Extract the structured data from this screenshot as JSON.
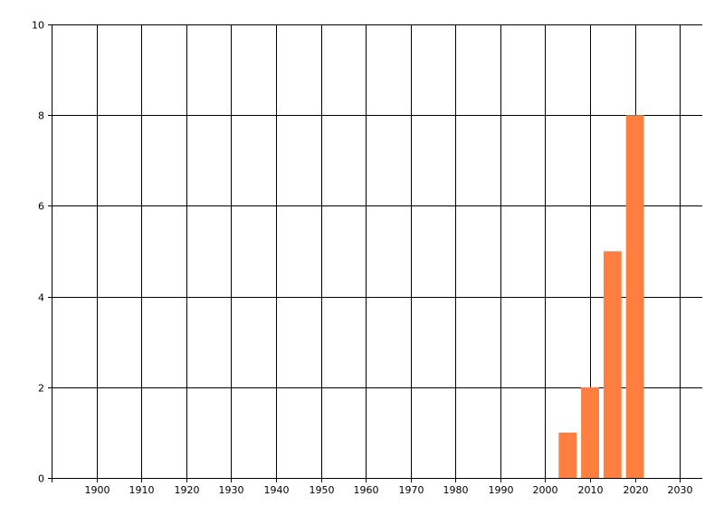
{
  "chart_data": {
    "type": "bar",
    "x": [
      2005,
      2010,
      2015,
      2020
    ],
    "values": [
      1,
      2,
      5,
      8
    ],
    "bar_width_years": 4,
    "title": "",
    "xlabel": "",
    "ylabel": "",
    "xlim": [
      1890,
      2035
    ],
    "ylim": [
      0,
      10
    ],
    "x_ticks": [
      1900,
      1910,
      1920,
      1930,
      1940,
      1950,
      1960,
      1970,
      1980,
      1990,
      2000,
      2010,
      2020,
      2030
    ],
    "y_ticks": [
      0,
      2,
      4,
      6,
      8,
      10
    ],
    "grid": true,
    "legend": "none",
    "bar_color": "#FF7F40",
    "grid_color": "#000000"
  }
}
